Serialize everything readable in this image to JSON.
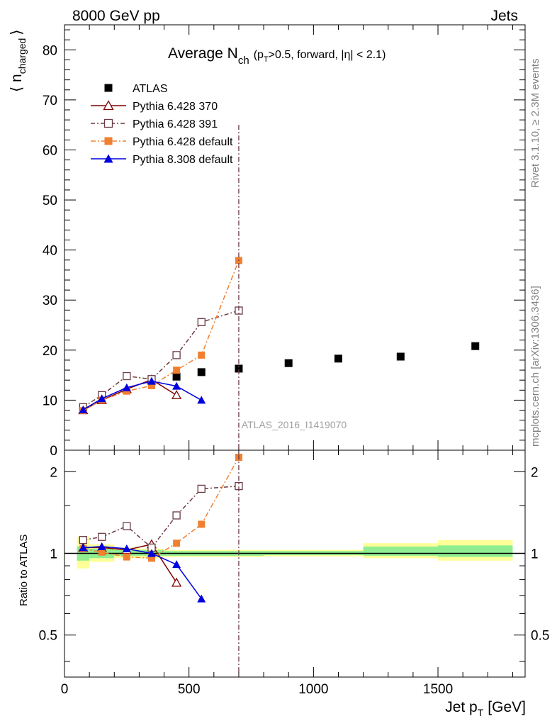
{
  "header": {
    "left": "8000 GeV pp",
    "right": "Jets",
    "side_right_top": "Rivet 3.1.10, ≥ 2.3M events",
    "side_right_bottom": "mcplots.cern.ch [arXiv:1306.3436]",
    "watermark": "ATLAS_2016_I1419070"
  },
  "chart_data": {
    "type": "scatter",
    "title_main": "Average N",
    "title_sub": "ch",
    "title_cond_a": "(p",
    "title_cond_sub": "T",
    "title_cond_b": ">0.5, forward, |η| < 2.1)",
    "ylabel": "⟨ n",
    "ylabel_sub": "charged",
    "ylabel_close": "⟩",
    "ratio_ylabel": "Ratio to ATLAS",
    "xlabel": "Jet p",
    "xlabel_sub": "T",
    "xlabel_unit": "[GeV]",
    "xlim": [
      0,
      1850
    ],
    "ylim": [
      0,
      85
    ],
    "ratio_ylim": [
      0.35,
      2.4
    ],
    "x_ticks": [
      "0",
      "500",
      "1000",
      "1500"
    ],
    "y_ticks": [
      "0",
      "10",
      "20",
      "30",
      "40",
      "50",
      "60",
      "70",
      "80"
    ],
    "ratio_ticks": [
      "0.5",
      "1",
      "2"
    ],
    "series": [
      {
        "name": "ATLAS",
        "color": "#000000",
        "marker": "square-filled",
        "x": [
          450,
          550,
          700,
          900,
          1100,
          1350,
          1650
        ],
        "y": [
          14.7,
          15.6,
          16.3,
          17.4,
          18.3,
          18.7,
          20.8
        ]
      },
      {
        "name": "Pythia 6.428 370",
        "color": "#800000",
        "marker": "triangle-open",
        "x": [
          75,
          150,
          250,
          350,
          450
        ],
        "y": [
          8.0,
          10.0,
          12.2,
          14.1,
          11.0
        ],
        "ratio": [
          1.05,
          1.05,
          1.03,
          1.08,
          0.78
        ]
      },
      {
        "name": "Pythia 6.428 391",
        "color": "#6b3a44",
        "marker": "square-open",
        "x": [
          75,
          150,
          250,
          350,
          450,
          550,
          700
        ],
        "y": [
          8.6,
          11.0,
          14.8,
          14.2,
          19.0,
          25.6,
          27.9
        ],
        "ratio": [
          1.12,
          1.15,
          1.26,
          1.05,
          1.38,
          1.73,
          1.77
        ]
      },
      {
        "name": "Pythia 6.428 default",
        "color": "#f08030",
        "marker": "square-filled",
        "x": [
          75,
          150,
          250,
          350,
          450,
          550,
          700
        ],
        "y": [
          7.9,
          10.0,
          11.8,
          12.9,
          16.0,
          19.0,
          37.9
        ],
        "ratio": [
          1.04,
          1.01,
          0.97,
          0.96,
          1.09,
          1.28,
          2.26
        ]
      },
      {
        "name": "Pythia 8.308 default",
        "color": "#0000e0",
        "marker": "triangle-filled",
        "x": [
          75,
          150,
          250,
          350,
          450,
          550
        ],
        "y": [
          8.1,
          10.3,
          12.5,
          13.8,
          12.8,
          10.0
        ],
        "ratio": [
          1.05,
          1.06,
          1.04,
          1.0,
          0.91,
          0.68
        ]
      }
    ],
    "ratio_bands": [
      {
        "x0": 50,
        "x1": 100,
        "y_lo": 0.94,
        "y_hi": 1.06,
        "y_lo2": 0.88,
        "y_hi2": 1.15
      },
      {
        "x0": 100,
        "x1": 200,
        "y_lo": 0.96,
        "y_hi": 1.04,
        "y_lo2": 0.93,
        "y_hi2": 1.08
      },
      {
        "x0": 200,
        "x1": 300,
        "y_lo": 0.98,
        "y_hi": 1.03,
        "y_lo2": 0.96,
        "y_hi2": 1.05
      },
      {
        "x0": 300,
        "x1": 400,
        "y_lo": 0.98,
        "y_hi": 1.03,
        "y_lo2": 0.96,
        "y_hi2": 1.04
      },
      {
        "x0": 400,
        "x1": 500,
        "y_lo": 0.98,
        "y_hi": 1.02,
        "y_lo2": 0.97,
        "y_hi2": 1.03
      },
      {
        "x0": 500,
        "x1": 800,
        "y_lo": 0.98,
        "y_hi": 1.02,
        "y_lo2": 0.97,
        "y_hi2": 1.03
      },
      {
        "x0": 800,
        "x1": 1200,
        "y_lo": 0.985,
        "y_hi": 1.02,
        "y_lo2": 0.975,
        "y_hi2": 1.03
      },
      {
        "x0": 1200,
        "x1": 1500,
        "y_lo": 0.98,
        "y_hi": 1.06,
        "y_lo2": 0.96,
        "y_hi2": 1.09
      },
      {
        "x0": 1500,
        "x1": 1800,
        "y_lo": 0.97,
        "y_hi": 1.07,
        "y_lo2": 0.94,
        "y_hi2": 1.12
      }
    ]
  }
}
